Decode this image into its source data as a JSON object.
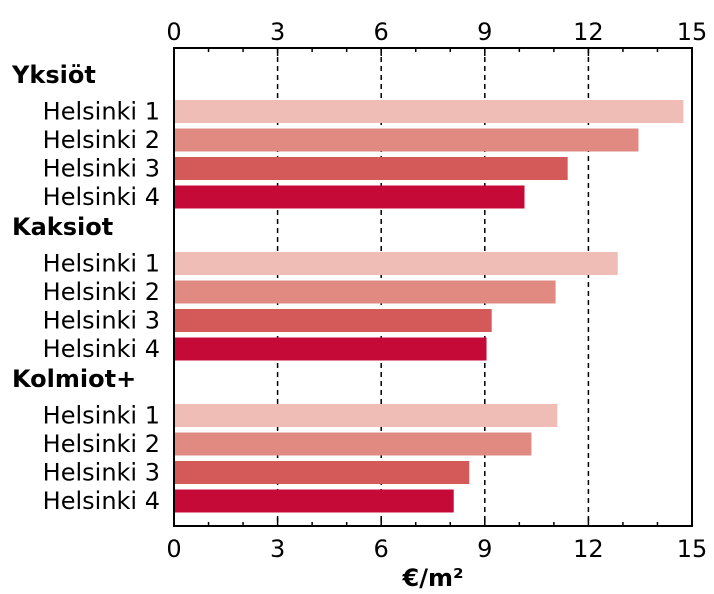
{
  "chart_data": {
    "type": "bar",
    "orientation": "horizontal",
    "xlabel": "€/m²",
    "xlim": [
      0,
      15
    ],
    "xticks": [
      0,
      3,
      6,
      9,
      12,
      15
    ],
    "grid": "vertical dashed",
    "groups": [
      {
        "name": "Yksiöt",
        "categories": [
          "Helsinki 1",
          "Helsinki 2",
          "Helsinki 3",
          "Helsinki 4"
        ],
        "values": [
          14.75,
          13.45,
          11.4,
          10.15
        ]
      },
      {
        "name": "Kaksiot",
        "categories": [
          "Helsinki 1",
          "Helsinki 2",
          "Helsinki 3",
          "Helsinki 4"
        ],
        "values": [
          12.85,
          11.05,
          9.2,
          9.05
        ]
      },
      {
        "name": "Kolmiot+",
        "categories": [
          "Helsinki 1",
          "Helsinki 2",
          "Helsinki 3",
          "Helsinki 4"
        ],
        "values": [
          11.1,
          10.35,
          8.55,
          8.1
        ]
      }
    ],
    "colors": [
      "#efbdb5",
      "#e08a82",
      "#d45a5a",
      "#c50a38"
    ]
  }
}
